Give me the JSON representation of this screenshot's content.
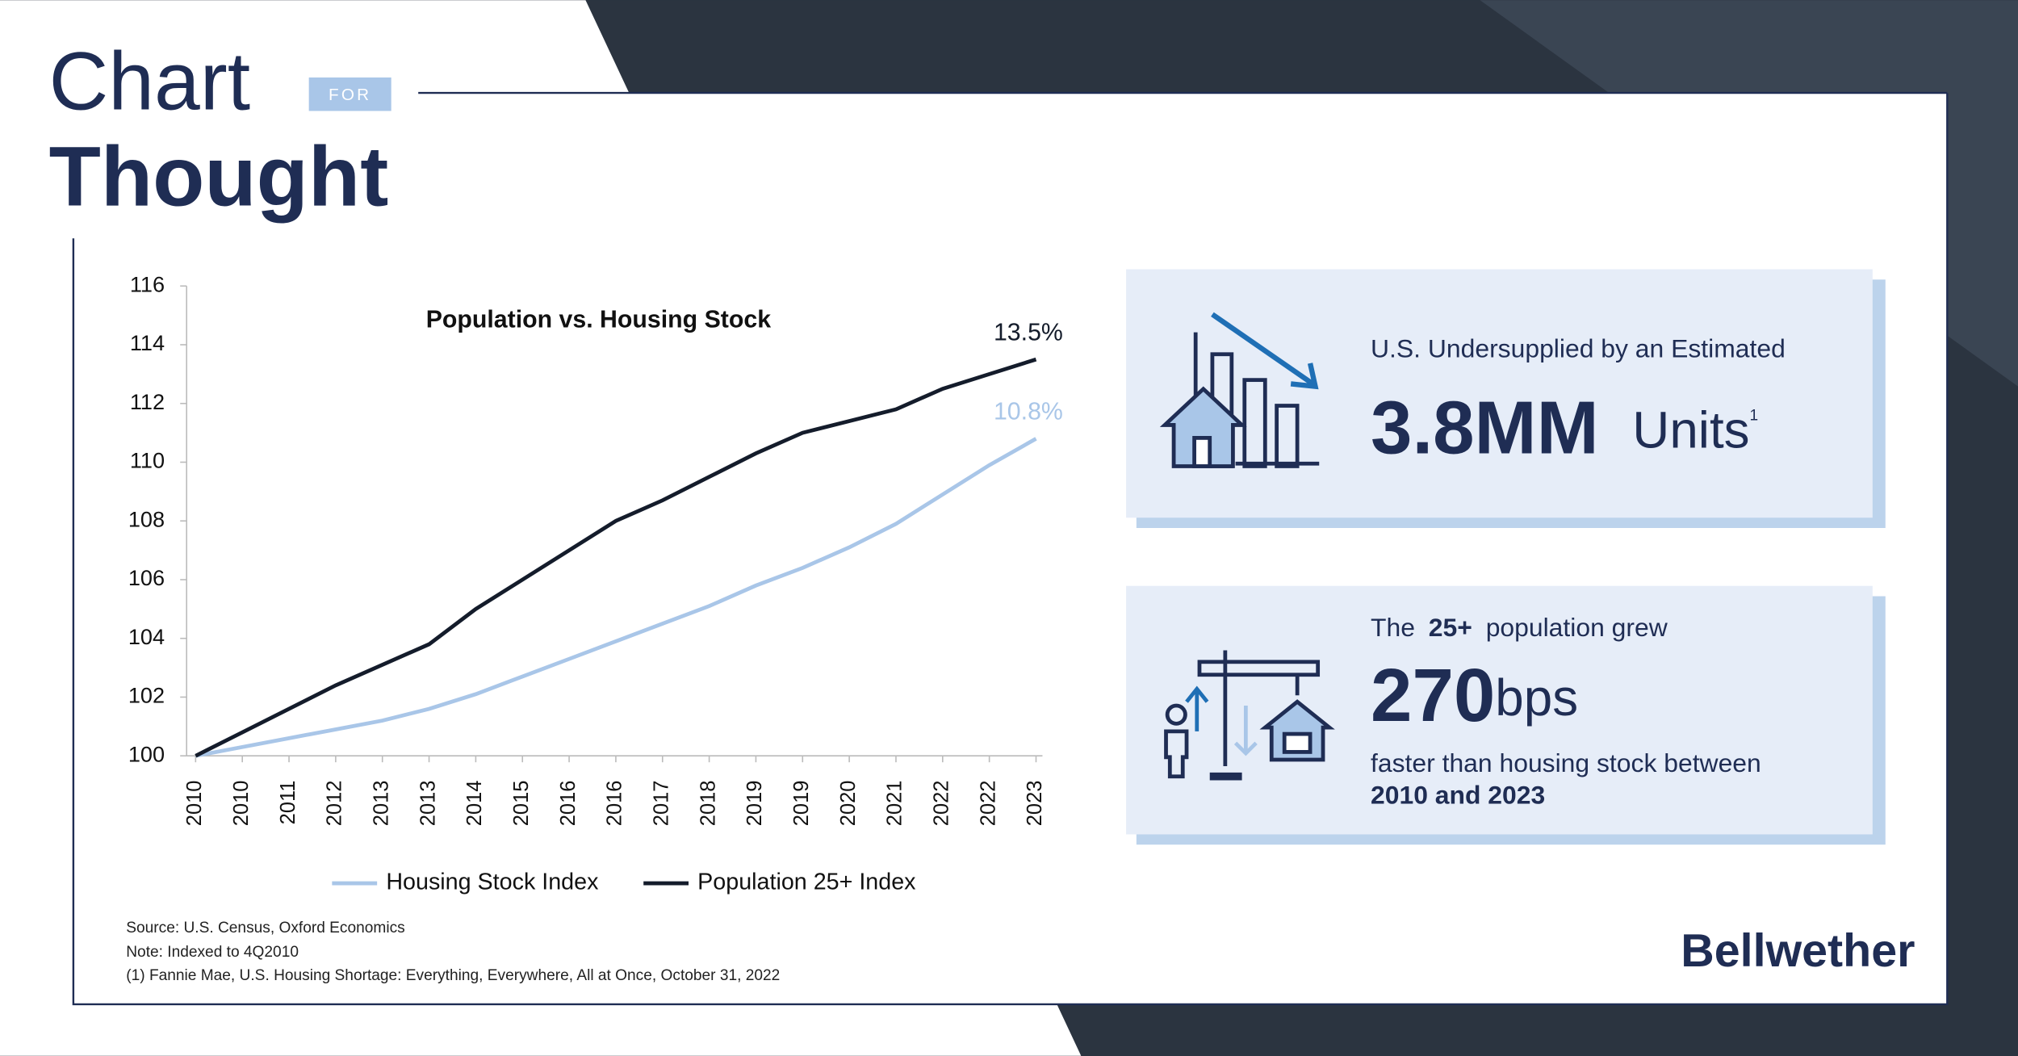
{
  "header": {
    "title_line1": "Chart",
    "badge": "FOR",
    "title_line2": "Thought"
  },
  "chart_data": {
    "type": "line",
    "title": "Population vs. Housing Stock",
    "categories": [
      "2010",
      "2010",
      "2011",
      "2012",
      "2013",
      "2013",
      "2014",
      "2015",
      "2016",
      "2016",
      "2017",
      "2018",
      "2019",
      "2019",
      "2020",
      "2021",
      "2022",
      "2022",
      "2023"
    ],
    "series": [
      {
        "name": "Housing Stock Index",
        "color": "#a9c6e8",
        "end_label": "10.8%",
        "values": [
          100,
          100.3,
          100.6,
          100.9,
          101.2,
          101.6,
          102.1,
          102.7,
          103.3,
          103.9,
          104.5,
          105.1,
          105.8,
          106.4,
          107.1,
          107.9,
          108.9,
          109.9,
          110.8
        ]
      },
      {
        "name": "Population 25+ Index",
        "color": "#141c2b",
        "end_label": "13.5%",
        "values": [
          100,
          100.8,
          101.6,
          102.4,
          103.1,
          103.8,
          105.0,
          106.0,
          107.0,
          108.0,
          108.7,
          109.5,
          110.3,
          111.0,
          111.4,
          111.8,
          112.5,
          113.0,
          113.5
        ]
      }
    ],
    "ylim": [
      100,
      116
    ],
    "yticks": [
      100,
      102,
      104,
      106,
      108,
      110,
      112,
      114,
      116
    ],
    "legend": "bottom"
  },
  "callouts": [
    {
      "lead": "U.S. Undersupplied by an Estimated",
      "figure": "3.8MM",
      "unit": "Units",
      "footnote_mark": "1"
    },
    {
      "lead_pre": "The",
      "lead_bold": "25+",
      "lead_post": "population grew",
      "figure": "270",
      "unit": "bps",
      "tail": "faster than housing stock between",
      "tail_bold": "2010 and 2023"
    }
  ],
  "footnotes": [
    "Source: U.S. Census, Oxford Economics",
    "Note: Indexed to 4Q2010",
    "(1) Fannie Mae, U.S. Housing Shortage: Everything, Everywhere, All at Once, October 31, 2022"
  ],
  "brand": "Bellwether"
}
